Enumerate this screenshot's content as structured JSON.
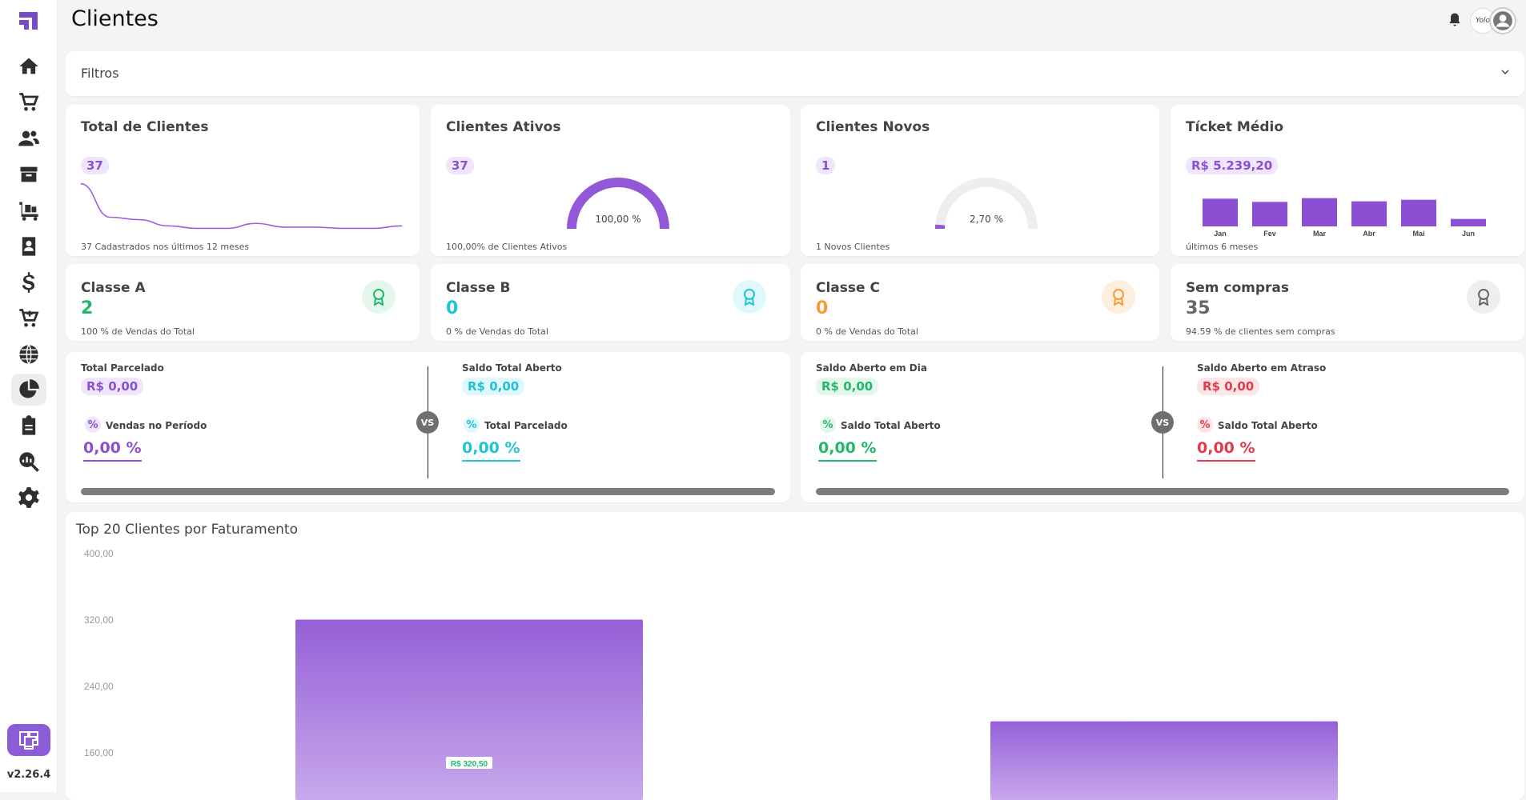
{
  "page": {
    "title": "Clientes"
  },
  "sidebar": {
    "items": [
      {
        "icon": "home-icon"
      },
      {
        "icon": "cart-icon"
      },
      {
        "icon": "users-icon"
      },
      {
        "icon": "box-icon"
      },
      {
        "icon": "truck-icon"
      },
      {
        "icon": "contact-book-icon"
      },
      {
        "icon": "dollar-icon"
      },
      {
        "icon": "cart-plus-icon"
      },
      {
        "icon": "globe-icon"
      },
      {
        "icon": "pie-chart-icon"
      },
      {
        "icon": "clipboard-icon"
      },
      {
        "icon": "analytics-search-icon"
      },
      {
        "icon": "gear-icon"
      }
    ],
    "active_index": 9,
    "version": "v2.26.4"
  },
  "header": {
    "signature": "Yolo"
  },
  "filters": {
    "label": "Filtros"
  },
  "kpis": {
    "total": {
      "title": "Total de Clientes",
      "value": "37",
      "foot": "37 Cadastrados nos últimos 12 meses"
    },
    "ativos": {
      "title": "Clientes Ativos",
      "value": "37",
      "gauge_label": "100,00 %",
      "gauge_fraction": 1.0,
      "foot": "100,00% de Clientes Ativos"
    },
    "novos": {
      "title": "Clientes Novos",
      "value": "1",
      "gauge_label": "2,70 %",
      "gauge_fraction": 0.027,
      "foot": "1 Novos Clientes"
    },
    "ticket": {
      "title": "Tícket Médio",
      "value": "R$ 5.239,20",
      "foot": "últimos 6 meses"
    }
  },
  "classes": {
    "a": {
      "title": "Classe A",
      "value": "2",
      "sub": "100 % de Vendas do Total"
    },
    "b": {
      "title": "Classe B",
      "value": "0",
      "sub": "0 % de Vendas do Total"
    },
    "c": {
      "title": "Classe C",
      "value": "0",
      "sub": "0 % de Vendas do Total"
    },
    "sem": {
      "title": "Sem compras",
      "value": "35",
      "sub": "94.59 % de clientes sem compras"
    }
  },
  "finance_left": {
    "left": {
      "label": "Total Parcelado",
      "value": "R$ 0,00",
      "pct_label": "Vendas no Período",
      "pct_value": "0,00 %"
    },
    "right": {
      "label": "Saldo Total Aberto",
      "value": "R$ 0,00",
      "pct_label": "Total Parcelado",
      "pct_value": "0,00 %"
    },
    "vs": "VS"
  },
  "finance_right": {
    "left": {
      "label": "Saldo Aberto em Dia",
      "value": "R$ 0,00",
      "pct_label": "Saldo Total Aberto",
      "pct_value": "0,00 %"
    },
    "right": {
      "label": "Saldo Aberto em Atraso",
      "value": "R$ 0,00",
      "pct_label": "Saldo Total Aberto",
      "pct_value": "0,00 %"
    },
    "vs": "VS"
  },
  "colors": {
    "purple": "#8c4fd4",
    "cyan": "#1ec4d6",
    "green": "#22b86a",
    "red": "#e23b4b",
    "orange": "#f59b3c",
    "gray": "#666666"
  },
  "chart_data": [
    {
      "type": "line",
      "title": "Total de Clientes",
      "x": [
        1,
        2,
        3,
        4,
        5,
        6,
        7,
        8,
        9,
        10,
        11,
        12
      ],
      "values": [
        37,
        10,
        8,
        3,
        1,
        1,
        5,
        2,
        2,
        1,
        1,
        3
      ],
      "ylim": [
        0,
        40
      ]
    },
    {
      "type": "bar",
      "title": "Tícket Médio",
      "categories": [
        "Jan",
        "Fev",
        "Mar",
        "Abr",
        "Mai",
        "Jun"
      ],
      "values": [
        5200,
        4600,
        5300,
        4700,
        5000,
        1400
      ],
      "ylim": [
        0,
        6000
      ]
    },
    {
      "type": "bar",
      "title": "Top 20 Clientes por Faturamento",
      "yticks": [
        "400,00",
        "320,00",
        "240,00",
        "160,00"
      ],
      "ylim": [
        0,
        400
      ],
      "values": [
        320.5,
        198
      ],
      "data_labels": [
        "R$ 320,50",
        ""
      ]
    }
  ]
}
